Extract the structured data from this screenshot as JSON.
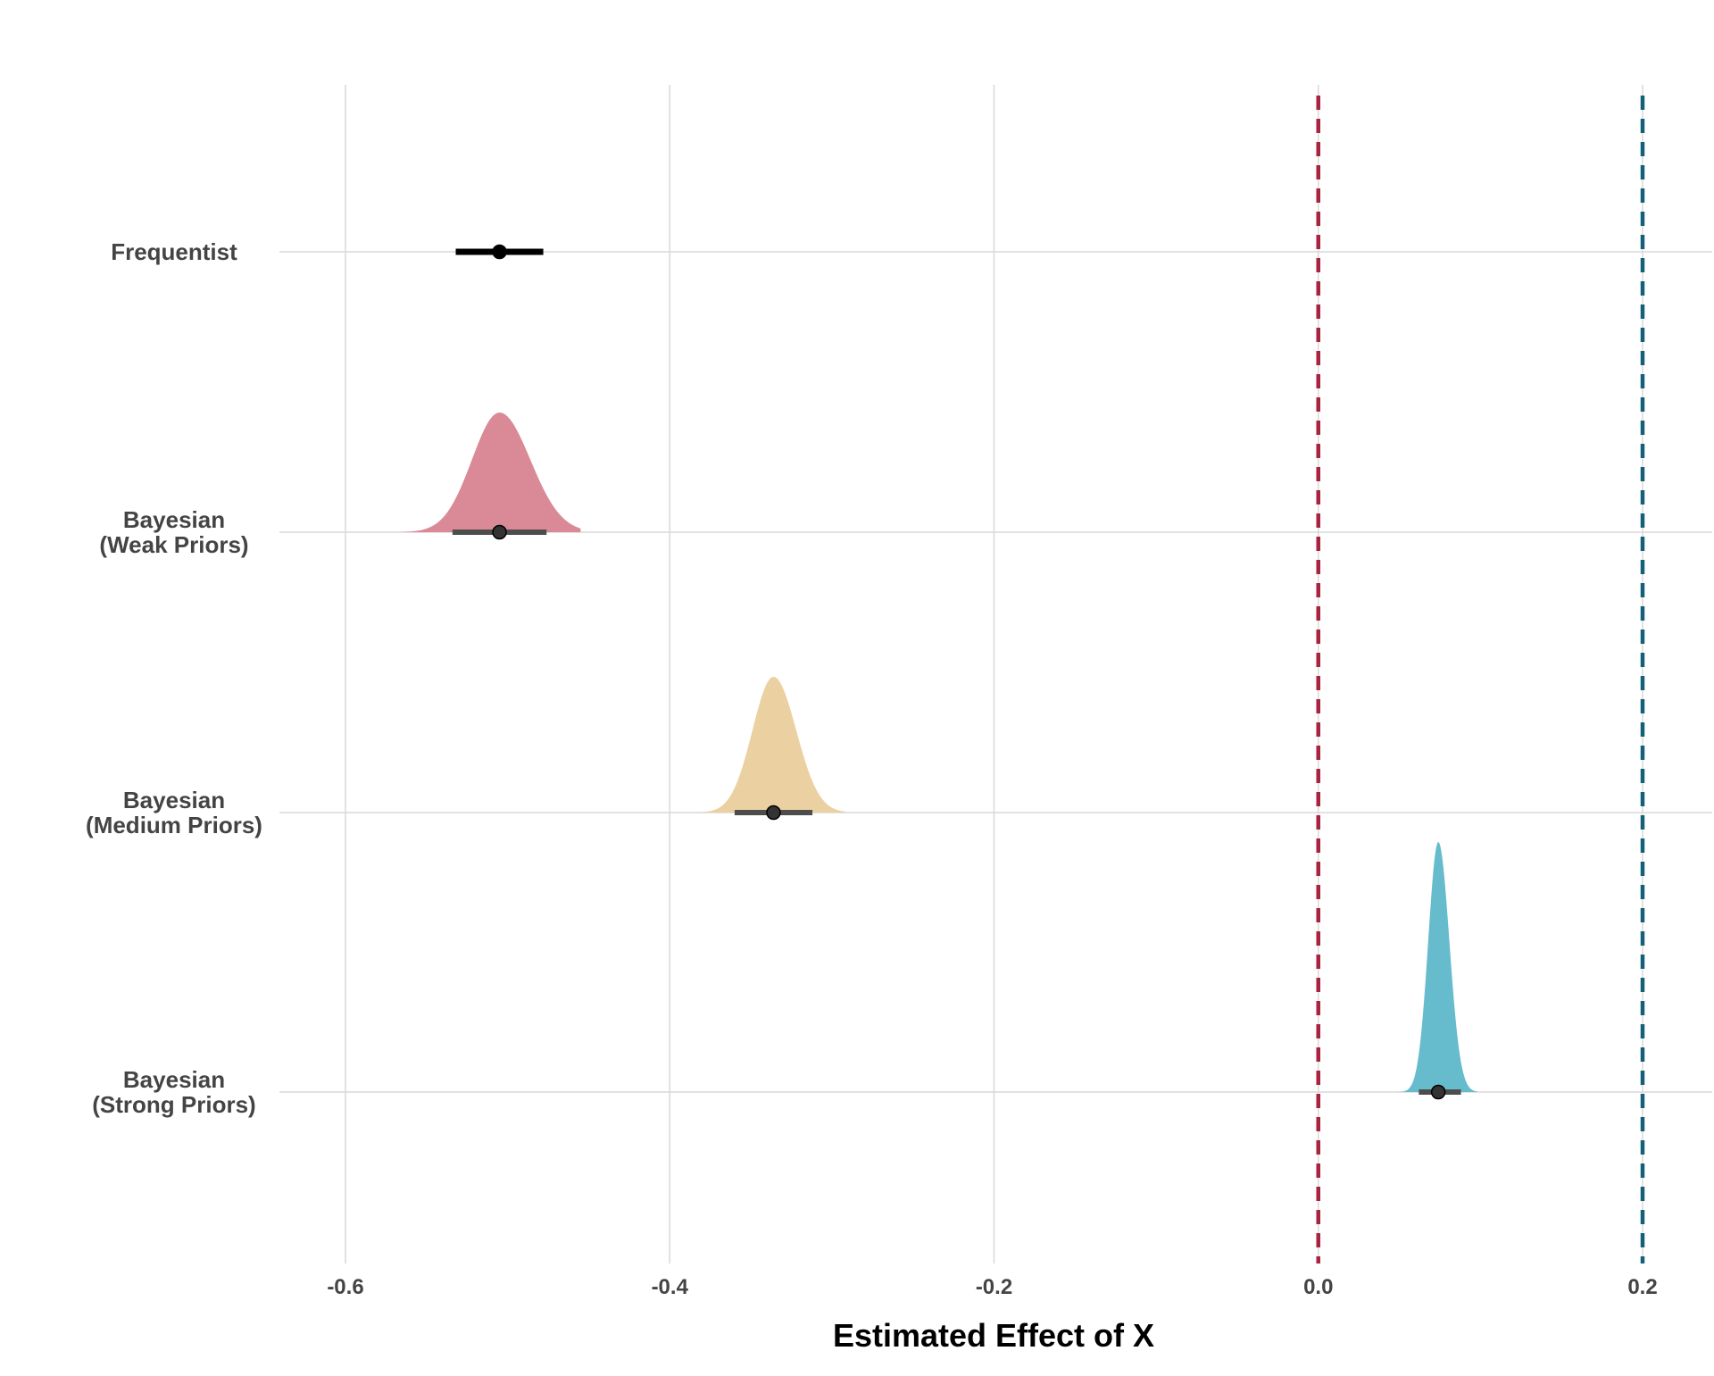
{
  "chart_data": {
    "type": "density-interval",
    "title": "",
    "xlabel": "Estimated Effect of X",
    "ylabel": "",
    "xlim": [
      -0.64,
      0.24
    ],
    "x_ticks": [
      -0.6,
      -0.4,
      -0.2,
      0.0,
      0.2
    ],
    "x_tick_labels": [
      "-0.6",
      "-0.4",
      "-0.2",
      "0.0",
      "0.2"
    ],
    "grid": true,
    "legend": "none",
    "series": [
      {
        "label_lines": [
          "Frequentist"
        ],
        "estimate": -0.505,
        "interval": [
          -0.532,
          -0.478
        ],
        "density": null,
        "color": "#000000"
      },
      {
        "label_lines": [
          "Bayesian",
          "(Weak Priors)"
        ],
        "estimate": -0.505,
        "interval": [
          -0.534,
          -0.476
        ],
        "density": {
          "mode": -0.505,
          "sd_left": 0.017,
          "sd_right": 0.019,
          "range": [
            -0.566,
            -0.455
          ]
        },
        "color": "#d98a96"
      },
      {
        "label_lines": [
          "Bayesian",
          "(Medium Priors)"
        ],
        "estimate": -0.336,
        "interval": [
          -0.36,
          -0.312
        ],
        "density": {
          "mode": -0.336,
          "sd_left": 0.013,
          "sd_right": 0.014,
          "range": [
            -0.382,
            -0.292
          ]
        },
        "color": "#ebd1a1"
      },
      {
        "label_lines": [
          "Bayesian",
          "(Strong Priors)"
        ],
        "estimate": 0.074,
        "interval": [
          0.062,
          0.088
        ],
        "density": {
          "mode": 0.074,
          "sd_left": 0.0062,
          "sd_right": 0.0068,
          "range": [
            0.048,
            0.098
          ]
        },
        "color": "#66bccd"
      }
    ],
    "reference_lines": [
      {
        "x": 0.0,
        "color": "#a8233f",
        "style": "dashed"
      },
      {
        "x": 0.2,
        "color": "#14607a",
        "style": "dashed"
      }
    ]
  }
}
